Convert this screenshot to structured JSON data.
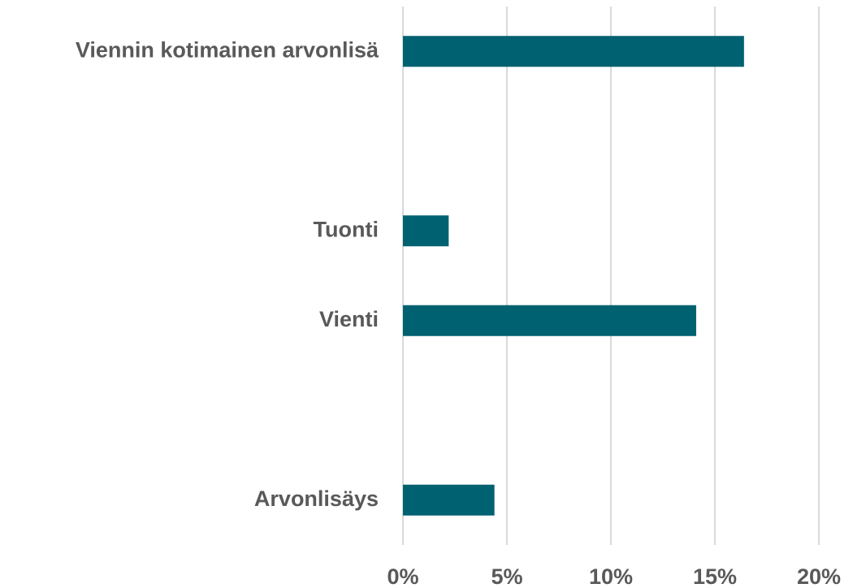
{
  "chart_data": {
    "type": "bar",
    "orientation": "horizontal",
    "categories": [
      "Viennin kotimainen arvonlisä",
      null,
      "Tuonti",
      "Vienti",
      null,
      "Arvonlisäys"
    ],
    "values": [
      16.4,
      null,
      2.2,
      14.1,
      null,
      4.4
    ],
    "color": "#006170",
    "xlim": [
      0,
      20
    ],
    "xticks": [
      {
        "value": 0,
        "label": "0%"
      },
      {
        "value": 5,
        "label": "5%"
      },
      {
        "value": 10,
        "label": "10%"
      },
      {
        "value": 15,
        "label": "15%"
      },
      {
        "value": 20,
        "label": "20%"
      }
    ],
    "grid": true
  }
}
